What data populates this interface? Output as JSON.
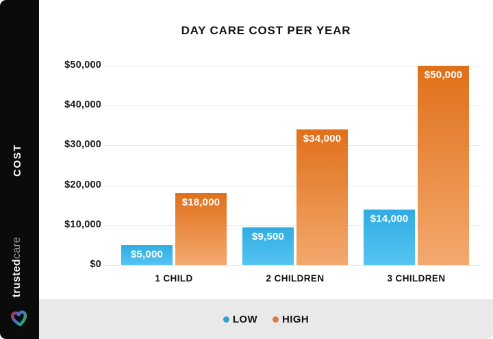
{
  "branding": {
    "name_bold": "trusted",
    "name_light": "care"
  },
  "sidebar": {
    "axis_label": "COST"
  },
  "chart_data": {
    "type": "bar",
    "title": "DAY CARE COST PER YEAR",
    "categories": [
      "1 CHILD",
      "2 CHILDREN",
      "3 CHILDREN"
    ],
    "series": [
      {
        "name": "LOW",
        "values": [
          5000,
          9500,
          14000
        ],
        "labels": [
          "$5,000",
          "$9,500",
          "$14,000"
        ],
        "color_top": "#31ace2",
        "color_bottom": "#55c4f1"
      },
      {
        "name": "HIGH",
        "values": [
          18000,
          34000,
          50000
        ],
        "labels": [
          "$18,000",
          "$34,000",
          "$50,000"
        ],
        "color_top": "#e0701a",
        "color_bottom": "#f3a96e"
      }
    ],
    "ylabel": "COST",
    "xlabel": "",
    "ylim": [
      0,
      50000
    ],
    "yticks": [
      "$0",
      "$10,000",
      "$20,000",
      "$30,000",
      "$40,000",
      "$50,000"
    ],
    "grid": true,
    "legend_position": "bottom"
  },
  "legend": {
    "items": [
      {
        "label": "LOW",
        "dot": "#2f9fd6"
      },
      {
        "label": "HIGH",
        "dot": "#e07a3c"
      }
    ]
  },
  "colors": {
    "sidebar_bg": "#0b0b0b",
    "legend_strip_bg": "#e9e9e9",
    "gridline": "#e8e8e8",
    "title_text": "#141414"
  }
}
